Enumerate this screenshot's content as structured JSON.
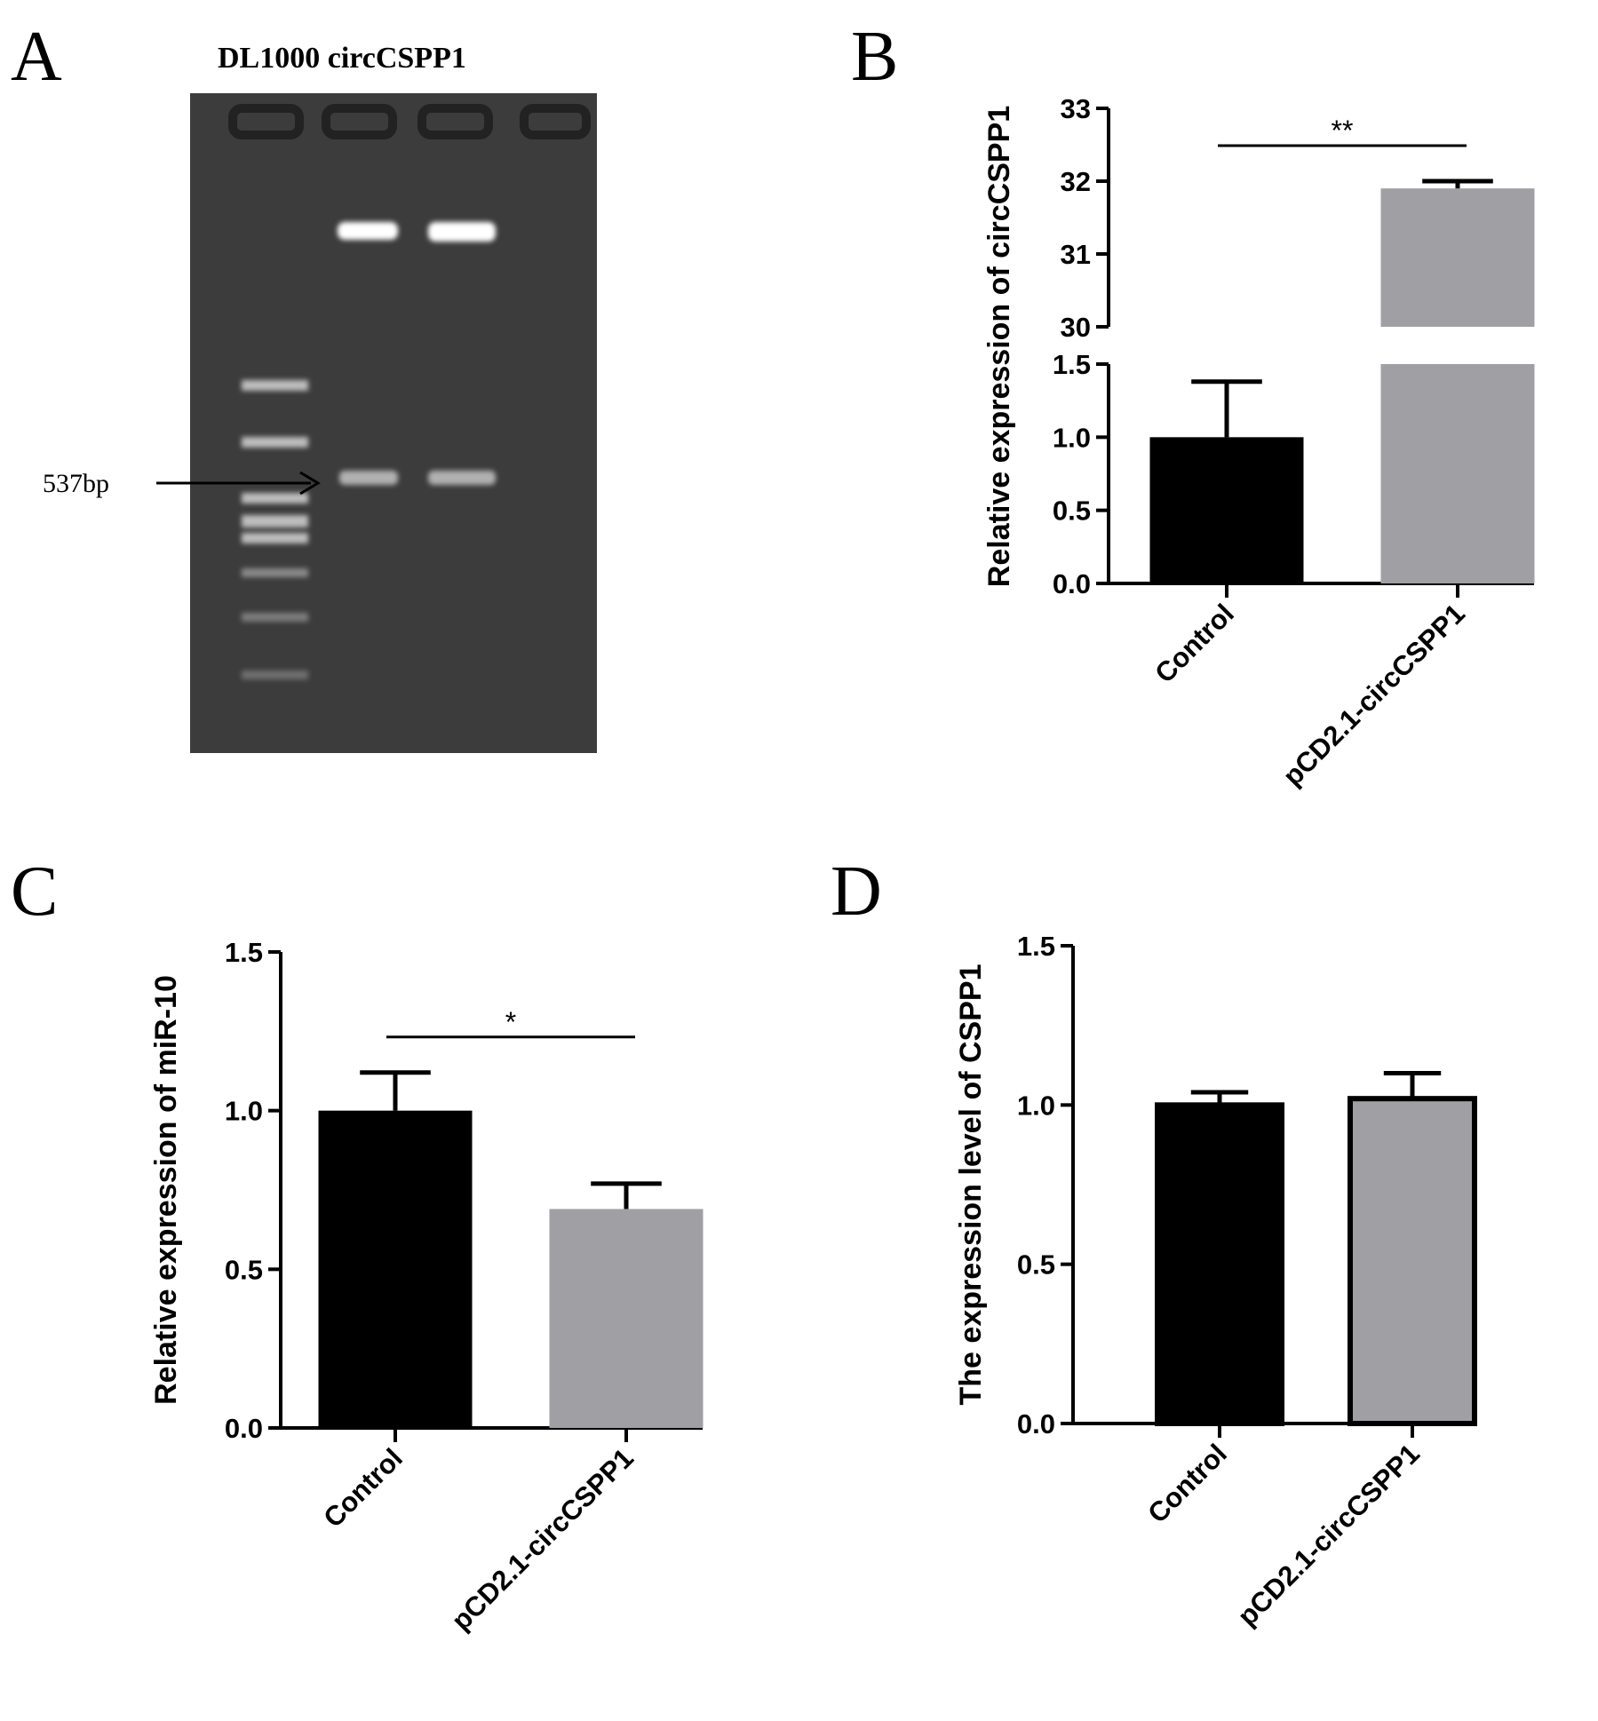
{
  "panel_a": {
    "label": "A",
    "title": "DL1000 circCSPP1",
    "annotation": "537bp"
  },
  "chart_data": [
    {
      "type": "bar",
      "panel_label": "B",
      "ylabel": "Relative expression of circCSPP1",
      "categories": [
        "Control",
        "pCD2.1-circCSPP1"
      ],
      "values": [
        1.0,
        31.9
      ],
      "errors": [
        0.38,
        0.1
      ],
      "colors": [
        "#000000",
        "#a0a0a4"
      ],
      "ylim": [
        0,
        33
      ],
      "axis_break": [
        1.5,
        30
      ],
      "yticks": [
        {
          "value": 0,
          "label": "0.0"
        },
        {
          "value": 0.5,
          "label": "0.5"
        },
        {
          "value": 1,
          "label": "1.0"
        },
        {
          "value": 1.5,
          "label": "1.5"
        },
        30,
        31,
        32,
        33
      ],
      "annotation": "**"
    },
    {
      "type": "bar",
      "panel_label": "C",
      "ylabel": "Relative expression of miR-10",
      "categories": [
        "Control",
        "pCD2.1-circCSPP1"
      ],
      "values": [
        1.0,
        0.69
      ],
      "errors": [
        0.12,
        0.08
      ],
      "colors": [
        "#000000",
        "#a0a0a4"
      ],
      "ylim": [
        0,
        1.5
      ],
      "yticks": [
        {
          "value": 0,
          "label": "0.0"
        },
        {
          "value": 0.5,
          "label": "0.5"
        },
        {
          "value": 1,
          "label": "1.0"
        },
        {
          "value": 1.5,
          "label": "1.5"
        }
      ],
      "annotation": "*"
    },
    {
      "type": "bar",
      "panel_label": "D",
      "ylabel": "The expression level of CSPP1",
      "categories": [
        "Control",
        "pCD2.1-circCSPP1"
      ],
      "values": [
        1.0,
        1.02
      ],
      "errors": [
        0.04,
        0.08
      ],
      "colors": [
        "#000000",
        "#a0a0a4"
      ],
      "bar_outline": true,
      "ylim": [
        0,
        1.5
      ],
      "yticks": [
        {
          "value": 0,
          "label": "0.0"
        },
        {
          "value": 0.5,
          "label": "0.5"
        },
        {
          "value": 1,
          "label": "1.0"
        },
        {
          "value": 1.5,
          "label": "1.5"
        }
      ]
    }
  ]
}
